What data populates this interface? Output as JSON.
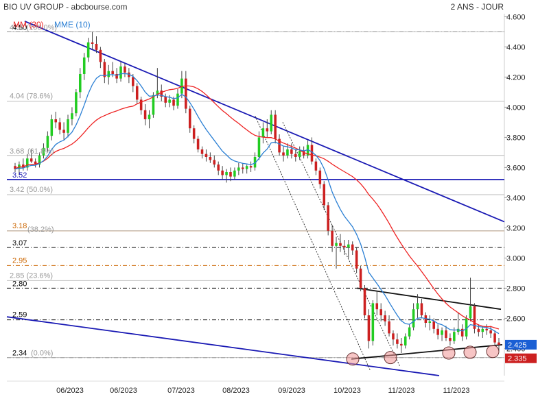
{
  "header": {
    "title": "BIO UV GROUP - abcbourse.com",
    "period": "2 ANS - JOUR"
  },
  "legend": {
    "mm_label": "MM (30)",
    "mme_label": "MME (10)"
  },
  "colors": {
    "up": "#22cc22",
    "down": "#cc2020",
    "mm": "#ee2222",
    "mme": "#2a7fd4",
    "trend": "#1a1ab4",
    "fib": "#999999",
    "orange": "#cc6600"
  },
  "chart_data": {
    "type": "candlestick",
    "y_axis": {
      "ticks": [
        "4.600",
        "4.400",
        "4.200",
        "4.000",
        "3.800",
        "3.600",
        "3.400",
        "3.200",
        "3.000",
        "2.800",
        "2.600",
        "2.400"
      ],
      "range": [
        2.22,
        4.62
      ]
    },
    "x_axis": {
      "labels": [
        "06/2023",
        "06/2023",
        "07/2023",
        "08/2023",
        "09/2023",
        "10/2023",
        "11/2023",
        "11/2023"
      ]
    },
    "last_prices": [
      {
        "label": "2.425",
        "value": 2.425,
        "color": "#1a5fd4"
      },
      {
        "label": "2.335",
        "value": 2.335,
        "color": "#cc2020"
      }
    ],
    "levels": [
      {
        "label": "4.50",
        "value": 4.5,
        "style": "dashdot",
        "color": "#000000",
        "text_color": "#000000"
      },
      {
        "label": "4.50 (100.0%)",
        "value": 4.5,
        "style": "fib",
        "color": "#999999",
        "text_color": "#999999"
      },
      {
        "label": "4.04 (78.6%)",
        "value": 4.04,
        "style": "fib",
        "color": "#999999",
        "text_color": "#999999"
      },
      {
        "label": "3.68",
        "value": 3.68,
        "style": "fib",
        "color": "#999999",
        "text_color": "#999999"
      },
      {
        "label": "(61.8%)",
        "value": 3.68,
        "style": "fib",
        "color": "#999999",
        "text_color": "#999999"
      },
      {
        "label": "3.52",
        "value": 3.52,
        "style": "solid",
        "color": "#1a1ab4",
        "text_color": "#1a1ab4"
      },
      {
        "label": "3.42 (50.0%)",
        "value": 3.42,
        "style": "fib",
        "color": "#999999",
        "text_color": "#999999"
      },
      {
        "label": "3.18",
        "value": 3.18,
        "style": "solid",
        "color": "#cc6600",
        "text_color": "#cc6600"
      },
      {
        "label": "(38.2%)",
        "value": 3.18,
        "style": "fib",
        "color": "#999999",
        "text_color": "#999999"
      },
      {
        "label": "3.07",
        "value": 3.07,
        "style": "dashdot",
        "color": "#000000",
        "text_color": "#000000"
      },
      {
        "label": "2.95",
        "value": 2.95,
        "style": "dashdot",
        "color": "#cc6600",
        "text_color": "#cc6600"
      },
      {
        "label": "2.85 (23.6%)",
        "value": 2.85,
        "style": "fib",
        "color": "#999999",
        "text_color": "#999999"
      },
      {
        "label": "2.80",
        "value": 2.8,
        "style": "dashdot",
        "color": "#000000",
        "text_color": "#000000"
      },
      {
        "label": "2.59",
        "value": 2.59,
        "style": "dashdot",
        "color": "#000000",
        "text_color": "#000000"
      },
      {
        "label": "2.34",
        "value": 2.34,
        "style": "dashdot",
        "color": "#000000",
        "text_color": "#000000"
      },
      {
        "label": "(0.0%)",
        "value": 2.34,
        "style": "fib",
        "color": "#999999",
        "text_color": "#999999"
      }
    ],
    "candles": [
      [
        3.61,
        3.63,
        3.57,
        3.59
      ],
      [
        3.59,
        3.64,
        3.55,
        3.62
      ],
      [
        3.62,
        3.66,
        3.58,
        3.6
      ],
      [
        3.6,
        3.69,
        3.58,
        3.66
      ],
      [
        3.66,
        3.72,
        3.63,
        3.64
      ],
      [
        3.64,
        3.66,
        3.6,
        3.62
      ],
      [
        3.62,
        3.7,
        3.6,
        3.68
      ],
      [
        3.68,
        3.76,
        3.66,
        3.73
      ],
      [
        3.73,
        3.84,
        3.7,
        3.81
      ],
      [
        3.81,
        3.95,
        3.78,
        3.92
      ],
      [
        3.92,
        3.97,
        3.86,
        3.9
      ],
      [
        3.9,
        3.93,
        3.82,
        3.85
      ],
      [
        3.85,
        3.9,
        3.78,
        3.83
      ],
      [
        3.83,
        3.95,
        3.8,
        3.92
      ],
      [
        3.92,
        4.0,
        3.88,
        3.96
      ],
      [
        3.96,
        4.12,
        3.94,
        4.1
      ],
      [
        4.1,
        4.26,
        4.06,
        4.22
      ],
      [
        4.22,
        4.36,
        4.18,
        4.33
      ],
      [
        4.33,
        4.46,
        4.3,
        4.43
      ],
      [
        4.43,
        4.5,
        4.38,
        4.42
      ],
      [
        4.42,
        4.47,
        4.36,
        4.38
      ],
      [
        4.38,
        4.4,
        4.26,
        4.3
      ],
      [
        4.3,
        4.32,
        4.16,
        4.2
      ],
      [
        4.2,
        4.28,
        4.15,
        4.24
      ],
      [
        4.24,
        4.3,
        4.2,
        4.22
      ],
      [
        4.22,
        4.26,
        4.16,
        4.19
      ],
      [
        4.19,
        4.3,
        4.17,
        4.27
      ],
      [
        4.27,
        4.29,
        4.2,
        4.23
      ],
      [
        4.23,
        4.26,
        4.16,
        4.2
      ],
      [
        4.2,
        4.22,
        4.1,
        4.14
      ],
      [
        4.14,
        4.16,
        4.02,
        4.05
      ],
      [
        4.05,
        4.07,
        3.95,
        3.98
      ],
      [
        3.98,
        4.02,
        3.88,
        3.92
      ],
      [
        3.92,
        3.98,
        3.86,
        3.95
      ],
      [
        3.95,
        4.1,
        3.93,
        4.08
      ],
      [
        4.08,
        4.26,
        4.06,
        4.11
      ],
      [
        4.11,
        4.15,
        4.04,
        4.07
      ],
      [
        4.07,
        4.09,
        4.0,
        4.03
      ],
      [
        4.03,
        4.08,
        4.0,
        4.05
      ],
      [
        4.05,
        4.07,
        3.98,
        4.01
      ],
      [
        4.01,
        4.12,
        3.99,
        4.09
      ],
      [
        4.09,
        4.24,
        4.06,
        4.19
      ],
      [
        4.19,
        4.24,
        3.96,
        3.99
      ],
      [
        3.99,
        4.01,
        3.83,
        3.86
      ],
      [
        3.86,
        3.88,
        3.76,
        3.79
      ],
      [
        3.79,
        3.81,
        3.7,
        3.72
      ],
      [
        3.72,
        3.74,
        3.66,
        3.69
      ],
      [
        3.69,
        3.72,
        3.64,
        3.67
      ],
      [
        3.67,
        3.7,
        3.63,
        3.65
      ],
      [
        3.65,
        3.68,
        3.6,
        3.62
      ],
      [
        3.62,
        3.64,
        3.55,
        3.58
      ],
      [
        3.58,
        3.61,
        3.52,
        3.55
      ],
      [
        3.55,
        3.59,
        3.5,
        3.57
      ],
      [
        3.57,
        3.6,
        3.51,
        3.54
      ],
      [
        3.54,
        3.6,
        3.52,
        3.58
      ],
      [
        3.58,
        3.63,
        3.55,
        3.6
      ],
      [
        3.6,
        3.63,
        3.56,
        3.59
      ],
      [
        3.59,
        3.62,
        3.56,
        3.61
      ],
      [
        3.61,
        3.64,
        3.57,
        3.6
      ],
      [
        3.6,
        3.7,
        3.58,
        3.67
      ],
      [
        3.67,
        3.84,
        3.65,
        3.8
      ],
      [
        3.8,
        3.9,
        3.76,
        3.86
      ],
      [
        3.86,
        3.92,
        3.8,
        3.84
      ],
      [
        3.84,
        3.98,
        3.82,
        3.95
      ],
      [
        3.95,
        3.98,
        3.76,
        3.79
      ],
      [
        3.79,
        3.82,
        3.68,
        3.7
      ],
      [
        3.7,
        3.74,
        3.64,
        3.68
      ],
      [
        3.68,
        3.76,
        3.66,
        3.72
      ],
      [
        3.72,
        3.76,
        3.66,
        3.69
      ],
      [
        3.69,
        3.72,
        3.64,
        3.67
      ],
      [
        3.67,
        3.74,
        3.65,
        3.71
      ],
      [
        3.71,
        3.74,
        3.66,
        3.68
      ],
      [
        3.68,
        3.78,
        3.66,
        3.75
      ],
      [
        3.75,
        3.8,
        3.62,
        3.64
      ],
      [
        3.64,
        3.66,
        3.55,
        3.58
      ],
      [
        3.58,
        3.6,
        3.46,
        3.49
      ],
      [
        3.49,
        3.51,
        3.32,
        3.35
      ],
      [
        3.35,
        3.37,
        3.15,
        3.18
      ],
      [
        3.18,
        3.22,
        3.04,
        3.08
      ],
      [
        3.08,
        3.14,
        2.93,
        3.1
      ],
      [
        3.1,
        3.16,
        3.04,
        3.08
      ],
      [
        3.08,
        3.12,
        3.02,
        3.07
      ],
      [
        3.07,
        3.12,
        3.0,
        3.09
      ],
      [
        3.09,
        3.11,
        3.02,
        3.05
      ],
      [
        3.05,
        3.07,
        2.9,
        2.93
      ],
      [
        2.93,
        2.95,
        2.78,
        2.8
      ],
      [
        2.8,
        2.82,
        2.6,
        2.62
      ],
      [
        2.62,
        2.66,
        2.4,
        2.45
      ],
      [
        2.45,
        2.72,
        2.42,
        2.7
      ],
      [
        2.7,
        2.78,
        2.62,
        2.66
      ],
      [
        2.66,
        2.7,
        2.58,
        2.62
      ],
      [
        2.62,
        2.65,
        2.55,
        2.58
      ],
      [
        2.58,
        2.62,
        2.48,
        2.5
      ],
      [
        2.5,
        2.52,
        2.42,
        2.46
      ],
      [
        2.46,
        2.5,
        2.4,
        2.43
      ],
      [
        2.43,
        2.47,
        2.37,
        2.42
      ],
      [
        2.42,
        2.5,
        2.4,
        2.48
      ],
      [
        2.48,
        2.56,
        2.46,
        2.54
      ],
      [
        2.54,
        2.7,
        2.52,
        2.66
      ],
      [
        2.66,
        2.76,
        2.6,
        2.7
      ],
      [
        2.7,
        2.73,
        2.6,
        2.62
      ],
      [
        2.62,
        2.64,
        2.54,
        2.57
      ],
      [
        2.57,
        2.62,
        2.52,
        2.58
      ],
      [
        2.58,
        2.6,
        2.5,
        2.53
      ],
      [
        2.53,
        2.56,
        2.46,
        2.49
      ],
      [
        2.49,
        2.54,
        2.45,
        2.52
      ],
      [
        2.52,
        2.55,
        2.45,
        2.47
      ],
      [
        2.47,
        2.5,
        2.42,
        2.45
      ],
      [
        2.45,
        2.54,
        2.43,
        2.51
      ],
      [
        2.51,
        2.64,
        2.49,
        2.53
      ],
      [
        2.53,
        2.56,
        2.45,
        2.48
      ],
      [
        2.48,
        2.62,
        2.46,
        2.6
      ],
      [
        2.6,
        2.87,
        2.58,
        2.68
      ],
      [
        2.68,
        2.7,
        2.5,
        2.53
      ],
      [
        2.53,
        2.56,
        2.48,
        2.51
      ],
      [
        2.51,
        2.55,
        2.47,
        2.53
      ],
      [
        2.53,
        2.56,
        2.49,
        2.52
      ],
      [
        2.52,
        2.55,
        2.47,
        2.5
      ],
      [
        2.5,
        2.52,
        2.42,
        2.44
      ],
      [
        2.44,
        2.47,
        2.38,
        2.425
      ]
    ]
  }
}
